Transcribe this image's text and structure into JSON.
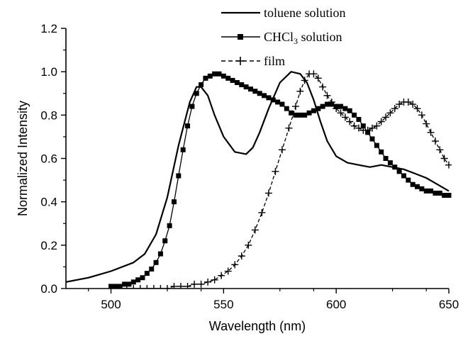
{
  "chart_data": {
    "type": "line",
    "xlabel": "Wavelength (nm)",
    "ylabel": "Normalized Intensity",
    "xlim": [
      480,
      650
    ],
    "ylim": [
      0.0,
      1.2
    ],
    "xticks": [
      "500",
      "550",
      "600",
      "650"
    ],
    "yticks": [
      "0.0",
      "0.2",
      "0.4",
      "0.6",
      "0.8",
      "1.0",
      "1.2"
    ],
    "legend_position": "top-right",
    "grid": false,
    "series": [
      {
        "name": "toluene solution",
        "marker": "none",
        "line": "solid",
        "x": [
          480,
          490,
          500,
          510,
          515,
          520,
          525,
          530,
          535,
          538,
          540,
          543,
          546,
          550,
          555,
          560,
          563,
          566,
          570,
          575,
          580,
          584,
          587,
          590,
          593,
          596,
          600,
          605,
          610,
          615,
          620,
          625,
          630,
          635,
          640,
          645,
          650
        ],
        "y": [
          0.03,
          0.05,
          0.08,
          0.12,
          0.16,
          0.25,
          0.42,
          0.66,
          0.86,
          0.93,
          0.93,
          0.89,
          0.8,
          0.7,
          0.63,
          0.62,
          0.65,
          0.72,
          0.83,
          0.95,
          1.0,
          0.99,
          0.95,
          0.87,
          0.77,
          0.68,
          0.61,
          0.58,
          0.57,
          0.56,
          0.57,
          0.56,
          0.55,
          0.53,
          0.51,
          0.48,
          0.45
        ]
      },
      {
        "name": "CHCl3 solution",
        "marker": "square",
        "line": "solid",
        "x": [
          500,
          502,
          504,
          506,
          508,
          510,
          512,
          514,
          516,
          518,
          520,
          522,
          524,
          526,
          528,
          530,
          532,
          534,
          536,
          538,
          540,
          542,
          544,
          546,
          548,
          550,
          552,
          554,
          556,
          558,
          560,
          562,
          564,
          566,
          568,
          570,
          572,
          574,
          576,
          578,
          580,
          582,
          584,
          586,
          588,
          590,
          592,
          594,
          596,
          598,
          600,
          602,
          604,
          606,
          608,
          610,
          612,
          614,
          616,
          618,
          620,
          622,
          624,
          626,
          628,
          630,
          632,
          634,
          636,
          638,
          640,
          642,
          644,
          646,
          648,
          650
        ],
        "y": [
          0.01,
          0.01,
          0.01,
          0.02,
          0.02,
          0.03,
          0.04,
          0.05,
          0.07,
          0.09,
          0.12,
          0.16,
          0.22,
          0.29,
          0.4,
          0.52,
          0.64,
          0.75,
          0.84,
          0.9,
          0.94,
          0.97,
          0.98,
          0.99,
          0.99,
          0.98,
          0.97,
          0.96,
          0.95,
          0.94,
          0.93,
          0.92,
          0.91,
          0.9,
          0.89,
          0.88,
          0.87,
          0.86,
          0.85,
          0.83,
          0.81,
          0.8,
          0.8,
          0.8,
          0.81,
          0.82,
          0.83,
          0.84,
          0.85,
          0.85,
          0.84,
          0.84,
          0.83,
          0.82,
          0.8,
          0.78,
          0.75,
          0.72,
          0.69,
          0.66,
          0.63,
          0.6,
          0.58,
          0.56,
          0.54,
          0.52,
          0.5,
          0.48,
          0.47,
          0.46,
          0.45,
          0.45,
          0.44,
          0.44,
          0.43,
          0.43
        ]
      },
      {
        "name": "film",
        "marker": "plus",
        "line": "dashed",
        "x": [
          504,
          507,
          510,
          513,
          516,
          519,
          522,
          525,
          528,
          531,
          534,
          537,
          540,
          543,
          546,
          549,
          552,
          555,
          558,
          561,
          564,
          567,
          570,
          573,
          576,
          579,
          582,
          584,
          586,
          588,
          590,
          592,
          594,
          596,
          598,
          600,
          602,
          604,
          606,
          608,
          610,
          612,
          614,
          616,
          618,
          620,
          622,
          624,
          626,
          628,
          630,
          632,
          634,
          636,
          638,
          640,
          642,
          644,
          646,
          648,
          650
        ],
        "y": [
          0.0,
          0.0,
          0.0,
          0.0,
          0.0,
          0.0,
          0.0,
          0.0,
          0.01,
          0.01,
          0.01,
          0.02,
          0.02,
          0.03,
          0.04,
          0.06,
          0.08,
          0.11,
          0.15,
          0.2,
          0.27,
          0.35,
          0.44,
          0.54,
          0.64,
          0.74,
          0.84,
          0.91,
          0.96,
          0.99,
          0.99,
          0.97,
          0.93,
          0.89,
          0.86,
          0.83,
          0.81,
          0.79,
          0.77,
          0.75,
          0.74,
          0.73,
          0.73,
          0.74,
          0.75,
          0.77,
          0.79,
          0.81,
          0.83,
          0.85,
          0.86,
          0.86,
          0.85,
          0.83,
          0.8,
          0.76,
          0.72,
          0.68,
          0.64,
          0.6,
          0.57
        ]
      }
    ]
  }
}
